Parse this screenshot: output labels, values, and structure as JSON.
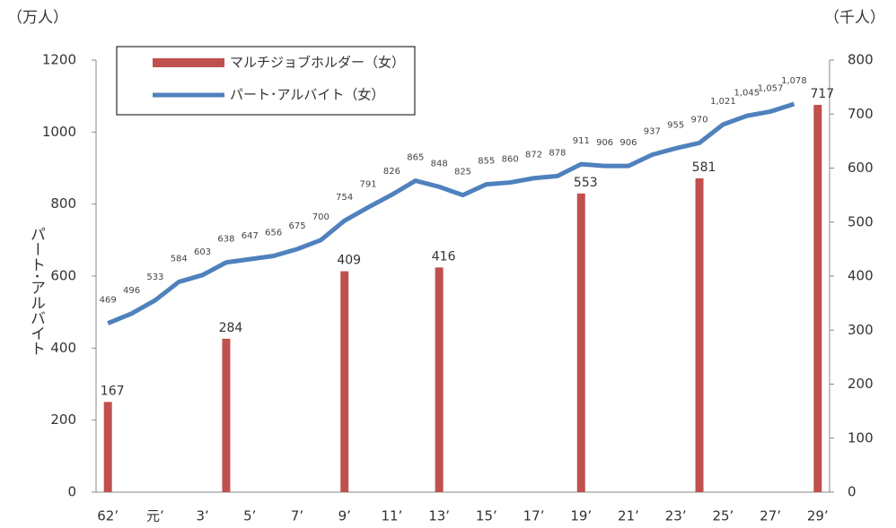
{
  "chart_data": {
    "type": "bar_line",
    "y_unit_label": "（万人）",
    "y2_unit_label": "（千人）",
    "ylabel": "パート･アルバイト",
    "categories": [
      "62’",
      null,
      "元’",
      null,
      "3’",
      null,
      "5’",
      null,
      "7’",
      null,
      "9’",
      null,
      "11’",
      null,
      "13’",
      null,
      "15’",
      null,
      "17’",
      null,
      "19’",
      null,
      "21’",
      null,
      "23’",
      null,
      "25’",
      null,
      "27’",
      null,
      "29’"
    ],
    "series": [
      {
        "name": "マルチジョブホルダー（女）",
        "color": "#c0504d",
        "type": "bar",
        "axis": "y2",
        "values": [
          167,
          null,
          null,
          null,
          null,
          284,
          null,
          null,
          null,
          null,
          409,
          null,
          null,
          null,
          416,
          null,
          null,
          null,
          null,
          null,
          553,
          null,
          null,
          null,
          null,
          581,
          null,
          null,
          null,
          null,
          717
        ]
      },
      {
        "name": "パート･アルバイト（女）",
        "color": "#4f81bd",
        "type": "line",
        "values": [
          469,
          496,
          533,
          584,
          603,
          638,
          647,
          656,
          675,
          700,
          754,
          791,
          826,
          865,
          848,
          825,
          855,
          860,
          872,
          878,
          911,
          906,
          906,
          937,
          955,
          970,
          1021,
          1045,
          1057,
          1078,
          null
        ],
        "value_labels": [
          "469",
          "496",
          "533",
          "584",
          "603",
          "638",
          "647",
          "656",
          "675",
          "700",
          "754",
          "791",
          "826",
          "865",
          "848",
          "825",
          "855",
          "860",
          "872",
          "878",
          "911",
          "906",
          "906",
          "937",
          "955",
          "970",
          "1,021",
          "1,045",
          "1,057",
          "1,078",
          null
        ]
      }
    ],
    "ylim": [
      0,
      1200
    ],
    "yticks": [
      0,
      200,
      400,
      600,
      800,
      1000,
      1200
    ],
    "y2lim": [
      0,
      800
    ],
    "y2ticks": [
      0,
      100,
      200,
      300,
      400,
      500,
      600,
      700,
      800
    ],
    "grid": false
  }
}
